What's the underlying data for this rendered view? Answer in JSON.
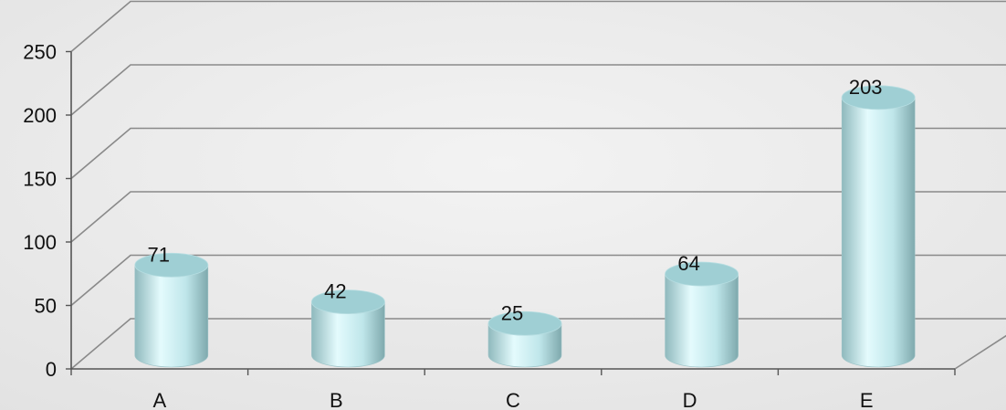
{
  "chart_data": {
    "type": "bar",
    "categories": [
      "A",
      "B",
      "C",
      "D",
      "E"
    ],
    "values": [
      71,
      42,
      25,
      64,
      203
    ],
    "title": "",
    "xlabel": "",
    "ylabel": "",
    "ylim": [
      0,
      250
    ],
    "yticks": [
      "0",
      "50",
      "100",
      "150",
      "200",
      "250"
    ],
    "data_labels": [
      "71",
      "42",
      "25",
      "64",
      "203"
    ],
    "grid": true,
    "bar_style": "3d-cylinder",
    "colors": {
      "bar": "#bfe6ea",
      "bar_dark": "#8fb9bd",
      "bar_light": "#e4fbfd",
      "bar_top": "#9fcfd4",
      "grid": "#8a8a8a",
      "background": "#ececec"
    }
  }
}
